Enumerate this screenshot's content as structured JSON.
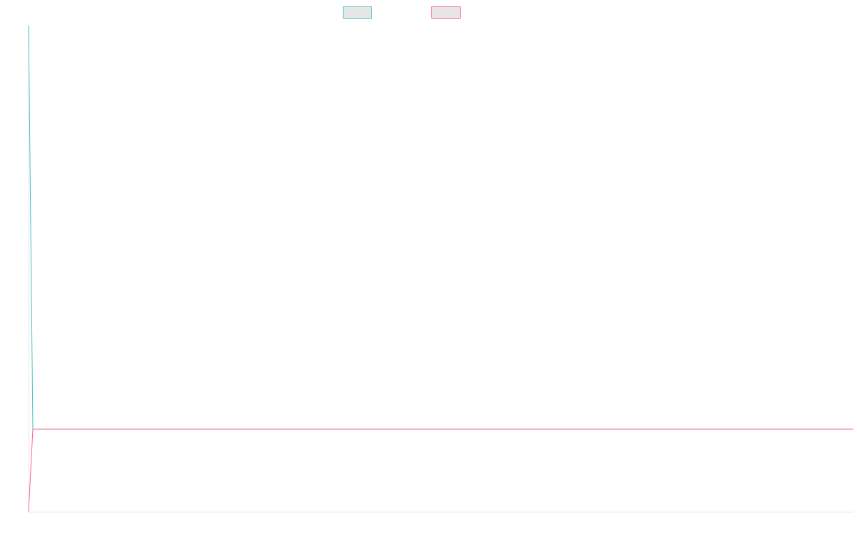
{
  "chart_data": {
    "type": "line",
    "title": "",
    "xlabel": "",
    "ylabel": "",
    "grid": false,
    "legend_position": "top-center",
    "x": [
      0,
      1,
      200
    ],
    "ylim": [
      0,
      1
    ],
    "series": [
      {
        "color": "#4bc0c0",
        "values": [
          1,
          0.17,
          0.17
        ]
      },
      {
        "color": "#ff6384",
        "values": [
          0,
          0.17,
          0.17
        ]
      }
    ]
  },
  "colors": {
    "axis": "#e5e5e5",
    "legend_fill": "#e6e6e6"
  }
}
